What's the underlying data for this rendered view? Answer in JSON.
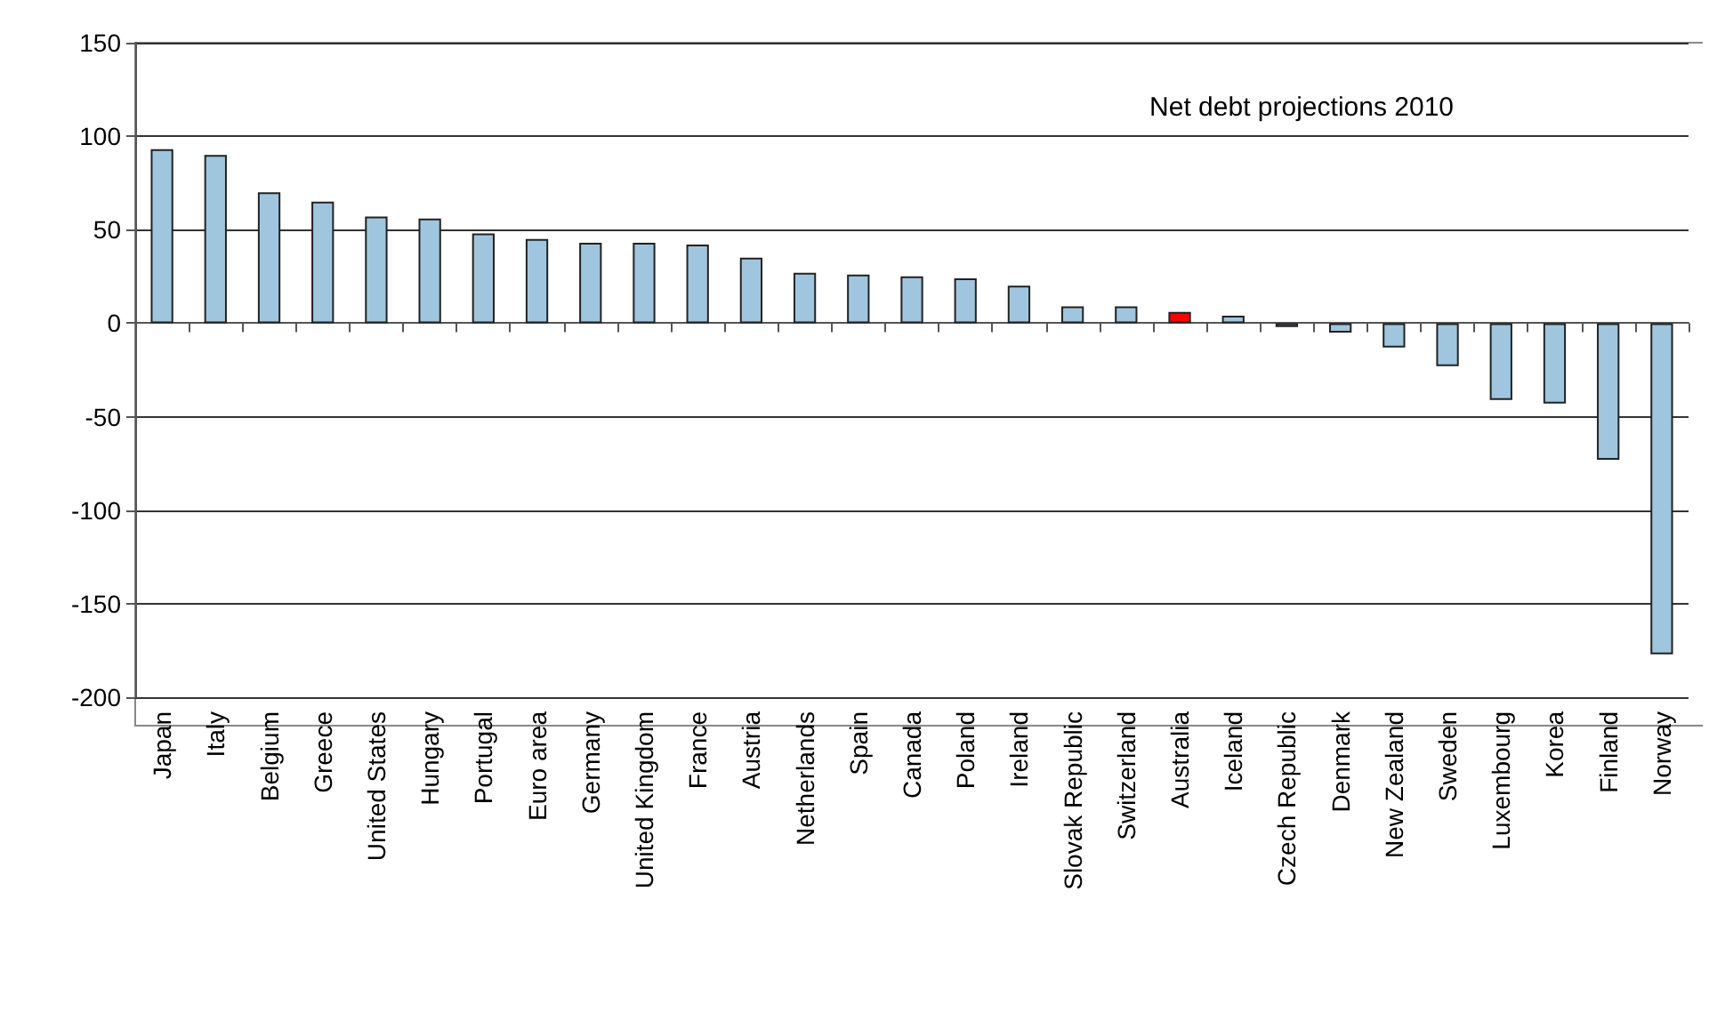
{
  "chart_data": {
    "type": "bar",
    "annotations": [
      "Net debt projections 2010"
    ],
    "categories": [
      "Japan",
      "Italy",
      "Belgium",
      "Greece",
      "United States",
      "Hungary",
      "Portugal",
      "Euro area",
      "Germany",
      "United Kingdom",
      "France",
      "Austria",
      "Netherlands",
      "Spain",
      "Canada",
      "Poland",
      "Ireland",
      "Slovak Republic",
      "Switzerland",
      "Australia",
      "Iceland",
      "Czech Republic",
      "Denmark",
      "New Zealand",
      "Sweden",
      "Luxembourg",
      "Korea",
      "Finland",
      "Norway"
    ],
    "values": [
      93,
      90,
      70,
      65,
      57,
      56,
      48,
      45,
      43,
      43,
      42,
      35,
      27,
      26,
      25,
      24,
      20,
      9,
      9,
      6,
      4,
      -2,
      -5,
      -13,
      -23,
      -41,
      -43,
      -73,
      -177
    ],
    "colors": [
      "#9fc6de",
      "#9fc6de",
      "#9fc6de",
      "#9fc6de",
      "#9fc6de",
      "#9fc6de",
      "#9fc6de",
      "#9fc6de",
      "#9fc6de",
      "#9fc6de",
      "#9fc6de",
      "#9fc6de",
      "#9fc6de",
      "#9fc6de",
      "#9fc6de",
      "#9fc6de",
      "#9fc6de",
      "#9fc6de",
      "#9fc6de",
      "#ff0000",
      "#9fc6de",
      "#9fc6de",
      "#9fc6de",
      "#9fc6de",
      "#9fc6de",
      "#9fc6de",
      "#9fc6de",
      "#9fc6de",
      "#9fc6de"
    ],
    "ylim": [
      -200,
      150
    ],
    "yticks": [
      -200,
      -150,
      -100,
      -50,
      0,
      50,
      100,
      150
    ],
    "grid": "y"
  }
}
